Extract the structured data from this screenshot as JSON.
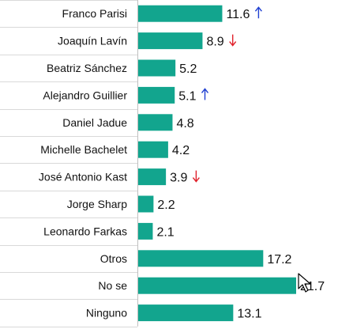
{
  "chart_data": {
    "type": "bar",
    "orientation": "horizontal",
    "categories": [
      "Franco Parisi",
      "Joaquín Lavín",
      "Beatriz Sánchez",
      "Alejandro Guillier",
      "Daniel Jadue",
      "Michelle Bachelet",
      "José Antonio Kast",
      "Jorge Sharp",
      "Leonardo Farkas",
      "Otros",
      "No se",
      "Ninguno"
    ],
    "values": [
      11.6,
      8.9,
      5.2,
      5.1,
      4.8,
      4.2,
      3.9,
      2.2,
      2.1,
      17.2,
      21.7,
      13.1
    ],
    "value_labels": [
      "11.6",
      "8.9",
      "5.2",
      "5.1",
      "4.8",
      "4.2",
      "3.9",
      "2.2",
      "2.1",
      "17.2",
      "21.7",
      "13.1"
    ],
    "trend": [
      "up",
      "down",
      null,
      "up",
      null,
      null,
      "down",
      null,
      null,
      null,
      null,
      null
    ],
    "xlim": [
      0,
      21.7
    ],
    "grid": "horizontal-category-lines",
    "legend": "none",
    "title": "",
    "xlabel": "",
    "ylabel": ""
  },
  "colors": {
    "bar": "#12a58e",
    "trend_up": "#1f3fd1",
    "trend_down": "#e0202a",
    "grid": "#d9d9d9",
    "text": "#111111"
  },
  "icons": {
    "trend_up": "arrow-up-icon",
    "trend_down": "arrow-down-icon",
    "cursor": "mouse-pointer-icon"
  }
}
